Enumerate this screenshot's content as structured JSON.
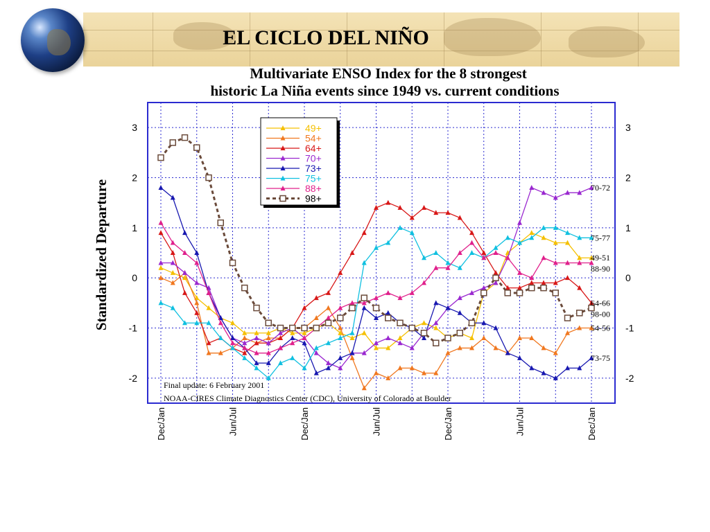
{
  "slide": {
    "title": "EL CICLO DEL NIÑO"
  },
  "chart_data": {
    "type": "line",
    "title": "Multivariate ENSO Index for the 8 strongest\nhistoric La Niña events since 1949 vs. current conditions",
    "ylabel": "Standardized Departure",
    "ylim": [
      -2.5,
      3.5
    ],
    "yticks": [
      -2,
      -1,
      0,
      1,
      2,
      3
    ],
    "x_tick_labels": [
      "Dec/Jan",
      "Jun/Jul",
      "Dec/Jan",
      "Jun/Jul",
      "Dec/Jan",
      "Jun/Jul",
      "Dec/Jan"
    ],
    "x_tick_index": [
      0,
      6,
      12,
      18,
      24,
      30,
      36
    ],
    "x_count": 37,
    "grid": true,
    "legend_position": "top-left",
    "annotations": [
      "Final update: 6 February 2001",
      "NOAA-CIRES Climate Diagnostics Center (CDC), University of Colorado at Boulder"
    ],
    "series": [
      {
        "name": "49+",
        "end_label": "49-51",
        "color": "#f5c000",
        "marker": "triangle",
        "values": [
          0.2,
          0.1,
          0.0,
          -0.4,
          -0.6,
          -0.8,
          -0.9,
          -1.1,
          -1.1,
          -1.1,
          -1.0,
          -1.1,
          -1.1,
          -1.0,
          -0.9,
          -1.1,
          -1.2,
          -1.1,
          -1.4,
          -1.4,
          -1.2,
          -1.0,
          -0.9,
          -1.0,
          -1.2,
          -1.1,
          -1.2,
          -0.3,
          -0.1,
          0.5,
          0.7,
          0.9,
          0.8,
          0.7,
          0.7,
          0.4,
          0.4
        ]
      },
      {
        "name": "54+",
        "end_label": "54-56",
        "color": "#f07820",
        "marker": "triangle",
        "values": [
          0.0,
          -0.1,
          0.1,
          -0.5,
          -1.5,
          -1.5,
          -1.4,
          -1.2,
          -1.3,
          -1.2,
          -1.2,
          -1.0,
          -1.0,
          -0.8,
          -0.6,
          -1.0,
          -1.6,
          -2.2,
          -1.9,
          -2.0,
          -1.8,
          -1.8,
          -1.9,
          -1.9,
          -1.5,
          -1.4,
          -1.4,
          -1.2,
          -1.4,
          -1.5,
          -1.2,
          -1.2,
          -1.4,
          -1.5,
          -1.1,
          -1.0,
          -1.0
        ]
      },
      {
        "name": "64+",
        "end_label": "64-66",
        "color": "#d81818",
        "marker": "triangle",
        "values": [
          0.9,
          0.5,
          -0.3,
          -0.7,
          -1.3,
          -1.2,
          -1.4,
          -1.5,
          -1.3,
          -1.3,
          -1.2,
          -1.0,
          -0.6,
          -0.4,
          -0.3,
          0.1,
          0.5,
          0.9,
          1.4,
          1.5,
          1.4,
          1.2,
          1.4,
          1.3,
          1.3,
          1.2,
          0.9,
          0.5,
          0.1,
          -0.2,
          -0.2,
          -0.1,
          -0.1,
          -0.1,
          0.0,
          -0.2,
          -0.5
        ]
      },
      {
        "name": "70+",
        "end_label": "70-72",
        "color": "#9a28d0",
        "marker": "triangle",
        "values": [
          0.3,
          0.3,
          0.1,
          -0.1,
          -0.2,
          -0.8,
          -1.2,
          -1.3,
          -1.2,
          -1.3,
          -1.1,
          -1.0,
          -1.2,
          -1.5,
          -1.7,
          -1.8,
          -1.5,
          -1.5,
          -1.3,
          -1.2,
          -1.3,
          -1.4,
          -1.1,
          -0.9,
          -0.6,
          -0.4,
          -0.3,
          -0.2,
          -0.1,
          0.4,
          1.1,
          1.8,
          1.7,
          1.6,
          1.7,
          1.7,
          1.8
        ]
      },
      {
        "name": "73+",
        "end_label": "73-75",
        "color": "#1818b0",
        "marker": "triangle",
        "values": [
          1.8,
          1.6,
          0.9,
          0.5,
          -0.3,
          -0.8,
          -1.2,
          -1.4,
          -1.7,
          -1.7,
          -1.4,
          -1.2,
          -1.3,
          -1.9,
          -1.8,
          -1.6,
          -1.5,
          -0.6,
          -0.8,
          -0.7,
          -0.9,
          -1.0,
          -1.2,
          -0.5,
          -0.6,
          -0.7,
          -0.9,
          -0.9,
          -1.0,
          -1.5,
          -1.6,
          -1.8,
          -1.9,
          -2.0,
          -1.8,
          -1.8,
          -1.6
        ]
      },
      {
        "name": "75+",
        "end_label": "75-77",
        "color": "#10c0e0",
        "marker": "triangle",
        "values": [
          -0.5,
          -0.6,
          -0.9,
          -0.9,
          -0.9,
          -1.2,
          -1.4,
          -1.6,
          -1.8,
          -2.0,
          -1.7,
          -1.6,
          -1.8,
          -1.4,
          -1.3,
          -1.2,
          -1.1,
          0.3,
          0.6,
          0.7,
          1.0,
          0.9,
          0.4,
          0.5,
          0.3,
          0.2,
          0.5,
          0.4,
          0.6,
          0.8,
          0.7,
          0.8,
          1.0,
          1.0,
          0.9,
          0.8,
          0.8
        ]
      },
      {
        "name": "88+",
        "end_label": "88-90",
        "color": "#e0208c",
        "marker": "triangle",
        "values": [
          1.1,
          0.7,
          0.5,
          0.3,
          -0.3,
          -0.9,
          -1.3,
          -1.4,
          -1.5,
          -1.5,
          -1.4,
          -1.3,
          -1.2,
          -1.0,
          -0.8,
          -0.6,
          -0.5,
          -0.5,
          -0.4,
          -0.3,
          -0.4,
          -0.3,
          -0.1,
          0.2,
          0.2,
          0.5,
          0.7,
          0.4,
          0.5,
          0.4,
          0.1,
          0.0,
          0.4,
          0.3,
          0.3,
          0.3,
          0.3
        ]
      },
      {
        "name": "98+",
        "end_label": "98-00",
        "color": "#6a4a3a",
        "marker": "square",
        "dashed": true,
        "values": [
          2.4,
          2.7,
          2.8,
          2.6,
          2.0,
          1.1,
          0.3,
          -0.2,
          -0.6,
          -0.9,
          -1.0,
          -1.0,
          -1.0,
          -1.0,
          -0.9,
          -0.8,
          -0.6,
          -0.4,
          -0.6,
          -0.8,
          -0.9,
          -1.0,
          -1.1,
          -1.3,
          -1.2,
          -1.1,
          -0.9,
          -0.3,
          0.0,
          -0.3,
          -0.3,
          -0.2,
          -0.2,
          -0.3,
          -0.8,
          -0.7,
          -0.6
        ]
      }
    ]
  }
}
